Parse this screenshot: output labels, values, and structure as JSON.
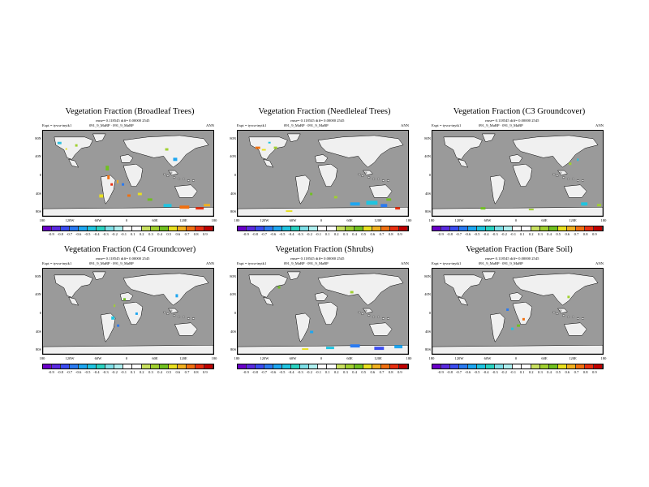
{
  "panels": [
    {
      "title": "Vegetation Fraction (Broadleaf Trees)",
      "stats": "rmse= 0.118545 diff= 0.00000 2545",
      "expt": "Expt = tyvra-tnytk1",
      "model": "091_9_MaBP  ·  091_9_MaBP",
      "period": "ANN",
      "field": "broadleaf"
    },
    {
      "title": "Vegetation Fraction (Needleleaf Trees)",
      "stats": "rmse= 0.118545 diff= 0.00000 2545",
      "expt": "Expt = tyvra-tnytk1",
      "model": "091_9_MaBP  ·  091_9_MaBP",
      "period": "ANN",
      "field": "needleleaf"
    },
    {
      "title": "Vegetation Fraction (C3 Groundcover)",
      "stats": "rmse= 0.118545 diff= 0.00000 2545",
      "expt": "Expt = tyvra-tnytk1",
      "model": "091_9_MaBP  ·  091_9_MaBP",
      "period": "ANN",
      "field": "c3"
    },
    {
      "title": "Vegetation Fraction (C4 Groundcover)",
      "stats": "rmse= 0.118545 diff= 0.00000 2545",
      "expt": "Expt = tyvra-tnytk1",
      "model": "091_9_MaBP  ·  091_9_MaBP",
      "period": "ANN",
      "field": "c4"
    },
    {
      "title": "Vegetation Fraction (Shrubs)",
      "stats": "rmse= 0.118545 diff= 0.00000 2545",
      "expt": "Expt = tyvra-tnytk1",
      "model": "091_9_MaBP  ·  091_9_MaBP",
      "period": "ANN",
      "field": "shrubs"
    },
    {
      "title": "Vegetation Fraction (Bare Soil)",
      "stats": "rmse= 0.118545 diff= 0.00000 2545",
      "expt": "Expt = tyvra-tnytk1",
      "model": "091_9_MaBP  ·  091_9_MaBP",
      "period": "ANN",
      "field": "baresoil"
    }
  ],
  "lat_labels": [
    "80N",
    "40N",
    "0",
    "40S",
    "80S"
  ],
  "lon_labels": [
    "180",
    "120W",
    "60W",
    "0",
    "60E",
    "120E",
    "180"
  ],
  "colorbar": {
    "ticks": [
      "-0.9",
      "-0.8",
      "-0.7",
      "-0.6",
      "-0.5",
      "-0.4",
      "-0.3",
      "-0.2",
      "-0.1",
      "0.1",
      "0.2",
      "0.3",
      "0.4",
      "0.5",
      "0.6",
      "0.7",
      "0.8",
      "0.9"
    ],
    "colors": [
      "#6a00c8",
      "#5a2ae0",
      "#3b4cf0",
      "#2a7af0",
      "#1ea6f0",
      "#20c4e0",
      "#2ad2c0",
      "#7ee0e8",
      "#b0f0f0",
      "#ffffff",
      "#ffffff",
      "#c8e060",
      "#a0d030",
      "#70c020",
      "#e8e020",
      "#f0b020",
      "#f07010",
      "#e83010",
      "#c00000"
    ]
  },
  "colors": {
    "ocean": "#9a9a9a",
    "land": "#f0f0f0"
  }
}
